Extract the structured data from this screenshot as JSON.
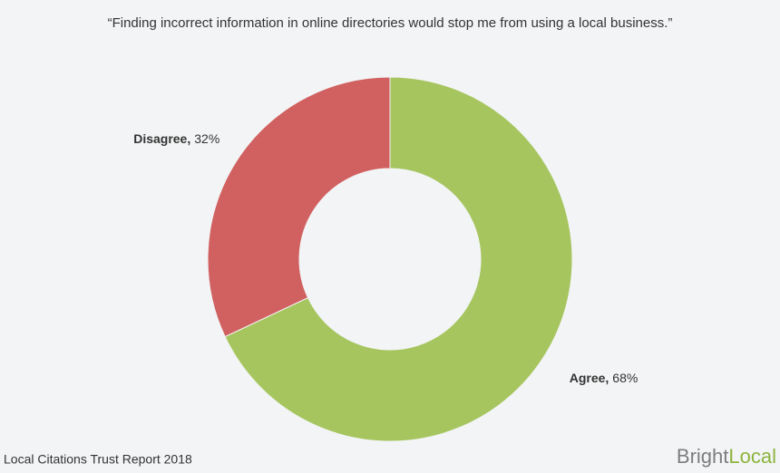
{
  "chart_data": {
    "type": "donut",
    "title": "“Finding incorrect information in online directories would stop me from using a local business.”",
    "categories": [
      "Agree,",
      "Disagree,"
    ],
    "values": [
      68,
      32
    ],
    "value_labels": [
      "68%",
      "32%"
    ],
    "colors": [
      "#a6c55f",
      "#d16160"
    ],
    "source": "Local Citations Trust Report 2018",
    "logo": [
      "Bright",
      "Local"
    ]
  }
}
